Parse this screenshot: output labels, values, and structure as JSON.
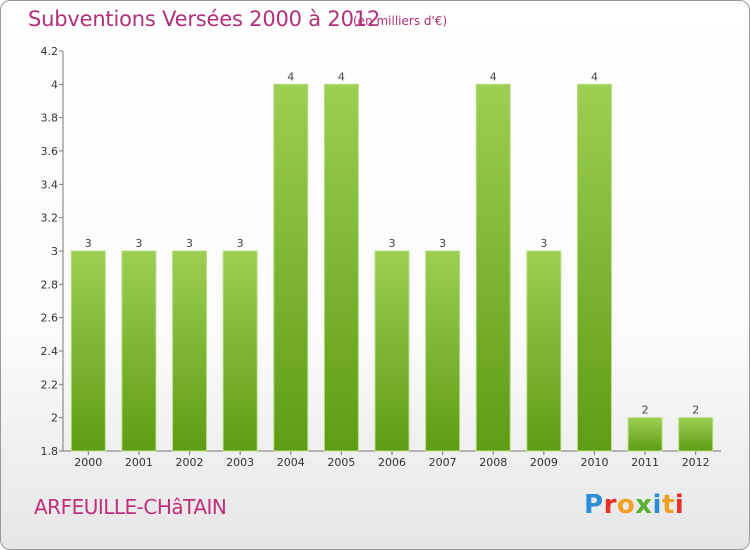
{
  "header": {
    "title": "Subventions Versées 2000 à 2012",
    "unit_note": "(en milliers d'€)"
  },
  "footer": {
    "place_name": "ARFEUILLE-CHâTAIN",
    "logo_text": "Proxiti",
    "logo_letter_colors": [
      "#2a8fd6",
      "#e8302a",
      "#f0a020",
      "#58b030",
      "#2a8fd6",
      "#f0a020",
      "#e8302a"
    ]
  },
  "chart_data": {
    "type": "bar",
    "categories": [
      "2000",
      "2001",
      "2002",
      "2003",
      "2004",
      "2005",
      "2006",
      "2007",
      "2008",
      "2009",
      "2010",
      "2011",
      "2012"
    ],
    "values": [
      3,
      3,
      3,
      3,
      4,
      4,
      3,
      3,
      4,
      3,
      4,
      2,
      2
    ],
    "data_labels": [
      "3",
      "3",
      "3",
      "3",
      "4",
      "4",
      "3",
      "3",
      "4",
      "3",
      "4",
      "2",
      "2"
    ],
    "y_ticks": [
      "1.8",
      "2",
      "2.2",
      "2.4",
      "2.6",
      "2.8",
      "3",
      "3.2",
      "3.4",
      "3.6",
      "3.8",
      "4",
      "4.2"
    ],
    "ylim": [
      1.8,
      4.2
    ],
    "bar_color": "#7cbf2a",
    "grid": false
  }
}
